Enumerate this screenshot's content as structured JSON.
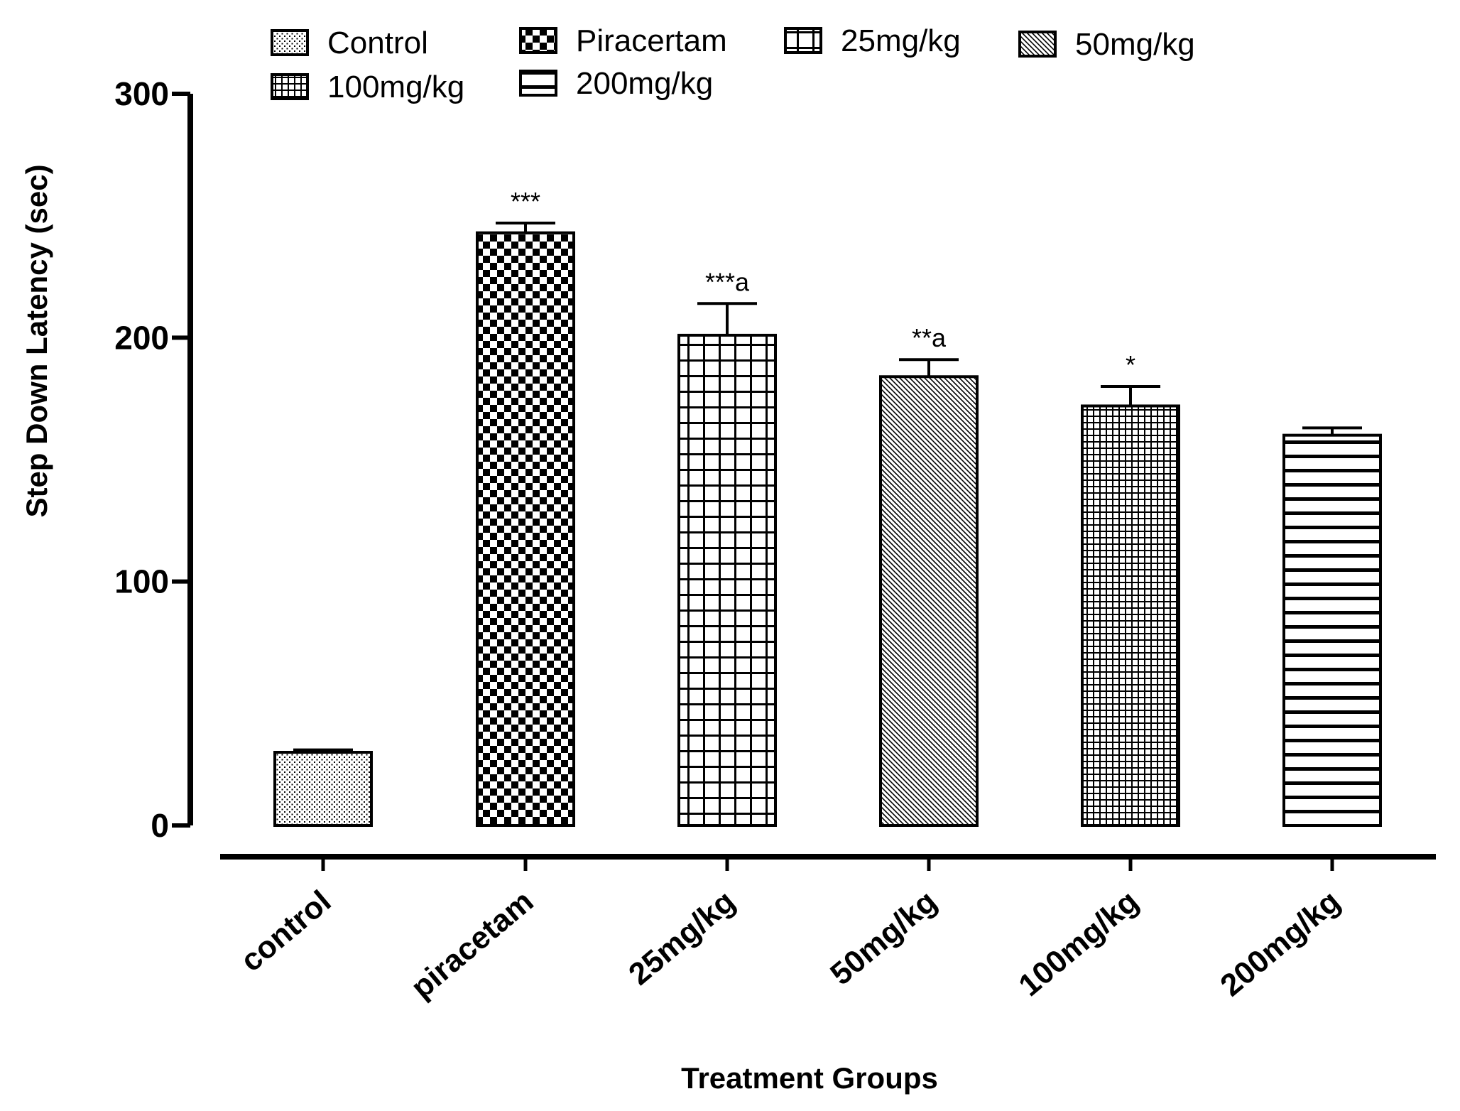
{
  "chart_data": {
    "type": "bar",
    "title": "",
    "xlabel": "Treatment Groups",
    "ylabel": "Step Down Latency (sec)",
    "ylim": [
      0,
      300
    ],
    "yticks": [
      0,
      100,
      200,
      300
    ],
    "grid": false,
    "categories": [
      "control",
      "piracetam",
      "25mg/kg",
      "50mg/kg",
      "100mg/kg",
      "200mg/kg"
    ],
    "values": [
      30,
      243,
      201,
      184,
      172,
      160
    ],
    "errors": [
      1,
      4,
      13,
      7,
      8,
      3
    ],
    "annotations": [
      "",
      "***",
      "***a",
      "**a",
      "*",
      ""
    ],
    "patterns": [
      "dots",
      "checker",
      "grid",
      "diagonal",
      "finegrid",
      "hlines"
    ],
    "legend": {
      "position": "top",
      "entries": [
        {
          "label": "Control",
          "pattern": "dots"
        },
        {
          "label": "Piracertam",
          "pattern": "checker"
        },
        {
          "label": "25mg/kg",
          "pattern": "grid"
        },
        {
          "label": "50mg/kg",
          "pattern": "diagonal"
        },
        {
          "label": "100mg/kg",
          "pattern": "finegrid"
        },
        {
          "label": "200mg/kg",
          "pattern": "hlines"
        }
      ]
    }
  }
}
